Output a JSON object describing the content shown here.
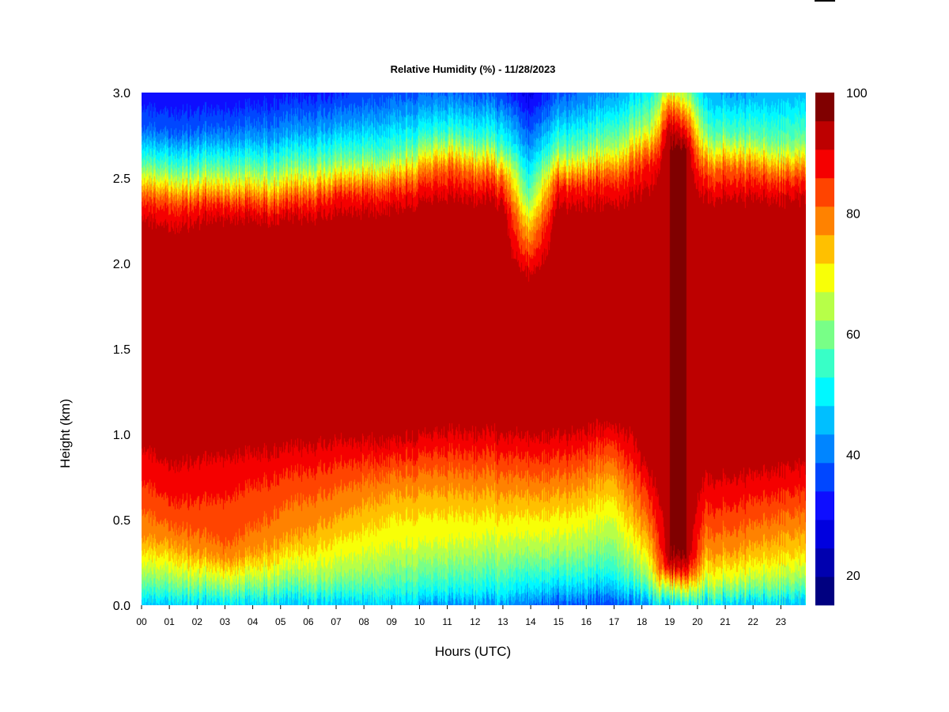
{
  "chart_data": {
    "type": "heatmap",
    "title": "Relative Humidity (%) - 11/28/2023",
    "xlabel": "Hours (UTC)",
    "ylabel": "Height (km)",
    "x_ticks": [
      "00",
      "01",
      "02",
      "03",
      "04",
      "05",
      "06",
      "07",
      "08",
      "09",
      "10",
      "11",
      "12",
      "13",
      "14",
      "15",
      "16",
      "17",
      "18",
      "19",
      "20",
      "21",
      "22",
      "23"
    ],
    "x_range": [
      0,
      23.9
    ],
    "y_ticks": [
      "0.0",
      "0.5",
      "1.0",
      "1.5",
      "2.0",
      "2.5",
      "3.0"
    ],
    "y_range": [
      0,
      3.0
    ],
    "colorbar": {
      "ticks": [
        "20",
        "40",
        "60",
        "80",
        "100"
      ],
      "range": [
        15,
        100
      ],
      "level_step": 5,
      "colors": [
        "#000080",
        "#0000AF",
        "#0000DF",
        "#0E0EFF",
        "#0047FF",
        "#0085FF",
        "#00BFFF",
        "#00F8FF",
        "#38FFC7",
        "#78FF87",
        "#B7FF48",
        "#F8FF07",
        "#FFC000",
        "#FF8200",
        "#FF4400",
        "#F50000",
        "#BD0000",
        "#800000"
      ]
    },
    "profiles_description": "Relative humidity vs height (km) at selected hours (UTC); values in %",
    "profiles": [
      {
        "hour": 0.0,
        "pts": [
          [
            0,
            45
          ],
          [
            0.05,
            52
          ],
          [
            0.15,
            62
          ],
          [
            0.25,
            70
          ],
          [
            0.4,
            80
          ],
          [
            0.6,
            86
          ],
          [
            0.8,
            92
          ],
          [
            1.0,
            97
          ],
          [
            2.2,
            100
          ],
          [
            2.4,
            88
          ],
          [
            2.6,
            60
          ],
          [
            2.8,
            40
          ],
          [
            3.0,
            32
          ]
        ]
      },
      {
        "hour": 1.0,
        "pts": [
          [
            0,
            48
          ],
          [
            0.05,
            55
          ],
          [
            0.15,
            65
          ],
          [
            0.25,
            73
          ],
          [
            0.4,
            83
          ],
          [
            0.6,
            90
          ],
          [
            0.85,
            96
          ],
          [
            2.1,
            100
          ],
          [
            2.35,
            88
          ],
          [
            2.55,
            60
          ],
          [
            2.75,
            40
          ],
          [
            3.0,
            30
          ]
        ]
      },
      {
        "hour": 3.0,
        "pts": [
          [
            0,
            50
          ],
          [
            0.05,
            56
          ],
          [
            0.12,
            66
          ],
          [
            0.2,
            74
          ],
          [
            0.3,
            84
          ],
          [
            0.5,
            88
          ],
          [
            0.8,
            93
          ],
          [
            1.0,
            99
          ],
          [
            2.2,
            100
          ],
          [
            2.35,
            90
          ],
          [
            2.55,
            62
          ],
          [
            2.75,
            42
          ],
          [
            3.0,
            30
          ]
        ]
      },
      {
        "hour": 5.0,
        "pts": [
          [
            0,
            48
          ],
          [
            0.05,
            55
          ],
          [
            0.15,
            65
          ],
          [
            0.25,
            73
          ],
          [
            0.4,
            82
          ],
          [
            0.6,
            86
          ],
          [
            0.85,
            93
          ],
          [
            1.0,
            99
          ],
          [
            2.2,
            100
          ],
          [
            2.35,
            88
          ],
          [
            2.55,
            62
          ],
          [
            2.75,
            44
          ],
          [
            3.0,
            32
          ]
        ]
      },
      {
        "hour": 7.0,
        "pts": [
          [
            0,
            47
          ],
          [
            0.05,
            54
          ],
          [
            0.15,
            64
          ],
          [
            0.3,
            72
          ],
          [
            0.5,
            80
          ],
          [
            0.7,
            86
          ],
          [
            0.9,
            93
          ],
          [
            1.05,
            99
          ],
          [
            2.2,
            100
          ],
          [
            2.4,
            90
          ],
          [
            2.6,
            62
          ],
          [
            2.8,
            45
          ],
          [
            3.0,
            34
          ]
        ]
      },
      {
        "hour": 9.0,
        "pts": [
          [
            0,
            46
          ],
          [
            0.05,
            53
          ],
          [
            0.2,
            63
          ],
          [
            0.35,
            70
          ],
          [
            0.55,
            76
          ],
          [
            0.75,
            84
          ],
          [
            0.9,
            92
          ],
          [
            1.05,
            99
          ],
          [
            2.25,
            100
          ],
          [
            2.45,
            88
          ],
          [
            2.65,
            60
          ],
          [
            2.85,
            46
          ],
          [
            3.0,
            38
          ]
        ]
      },
      {
        "hour": 11.0,
        "pts": [
          [
            0,
            44
          ],
          [
            0.05,
            52
          ],
          [
            0.2,
            62
          ],
          [
            0.35,
            70
          ],
          [
            0.55,
            76
          ],
          [
            0.75,
            84
          ],
          [
            0.95,
            93
          ],
          [
            1.1,
            99
          ],
          [
            2.3,
            100
          ],
          [
            2.55,
            86
          ],
          [
            2.75,
            58
          ],
          [
            2.9,
            46
          ],
          [
            3.0,
            40
          ]
        ]
      },
      {
        "hour": 13.0,
        "pts": [
          [
            0,
            42
          ],
          [
            0.05,
            50
          ],
          [
            0.2,
            60
          ],
          [
            0.35,
            68
          ],
          [
            0.55,
            76
          ],
          [
            0.75,
            84
          ],
          [
            0.95,
            93
          ],
          [
            1.1,
            99
          ],
          [
            2.3,
            100
          ],
          [
            2.5,
            86
          ],
          [
            2.7,
            58
          ],
          [
            2.9,
            44
          ],
          [
            3.0,
            36
          ]
        ]
      },
      {
        "hour": 13.9,
        "pts": [
          [
            0,
            40
          ],
          [
            0.06,
            48
          ],
          [
            0.2,
            58
          ],
          [
            0.35,
            68
          ],
          [
            0.55,
            76
          ],
          [
            0.75,
            85
          ],
          [
            0.95,
            94
          ],
          [
            1.1,
            99
          ],
          [
            1.85,
            100
          ],
          [
            2.0,
            92
          ],
          [
            2.2,
            78
          ],
          [
            2.4,
            60
          ],
          [
            2.7,
            42
          ],
          [
            3.0,
            28
          ]
        ]
      },
      {
        "hour": 15.0,
        "pts": [
          [
            0,
            38
          ],
          [
            0.06,
            46
          ],
          [
            0.2,
            58
          ],
          [
            0.35,
            68
          ],
          [
            0.55,
            76
          ],
          [
            0.75,
            85
          ],
          [
            0.95,
            94
          ],
          [
            1.1,
            99
          ],
          [
            2.25,
            100
          ],
          [
            2.45,
            90
          ],
          [
            2.65,
            62
          ],
          [
            2.85,
            46
          ],
          [
            3.0,
            38
          ]
        ]
      },
      {
        "hour": 17.0,
        "pts": [
          [
            0,
            36
          ],
          [
            0.06,
            44
          ],
          [
            0.2,
            56
          ],
          [
            0.35,
            64
          ],
          [
            0.55,
            72
          ],
          [
            0.75,
            80
          ],
          [
            0.95,
            90
          ],
          [
            1.1,
            98
          ],
          [
            2.25,
            100
          ],
          [
            2.5,
            88
          ],
          [
            2.7,
            64
          ],
          [
            2.9,
            50
          ],
          [
            3.0,
            44
          ]
        ]
      },
      {
        "hour": 18.3,
        "pts": [
          [
            0,
            44
          ],
          [
            0.05,
            54
          ],
          [
            0.15,
            66
          ],
          [
            0.3,
            76
          ],
          [
            0.5,
            86
          ],
          [
            0.7,
            93
          ],
          [
            0.85,
            99
          ],
          [
            2.3,
            100
          ],
          [
            2.6,
            90
          ],
          [
            2.8,
            66
          ],
          [
            3.0,
            52
          ]
        ]
      },
      {
        "hour": 19.0,
        "pts": [
          [
            0,
            48
          ],
          [
            0.05,
            60
          ],
          [
            0.12,
            74
          ],
          [
            0.18,
            88
          ],
          [
            0.22,
            97
          ],
          [
            0.3,
            100
          ],
          [
            2.75,
            100
          ],
          [
            2.9,
            86
          ],
          [
            3.0,
            70
          ]
        ]
      },
      {
        "hour": 19.6,
        "pts": [
          [
            0,
            50
          ],
          [
            0.05,
            60
          ],
          [
            0.12,
            74
          ],
          [
            0.2,
            90
          ],
          [
            0.3,
            100
          ],
          [
            2.7,
            100
          ],
          [
            2.85,
            86
          ],
          [
            3.0,
            66
          ]
        ]
      },
      {
        "hour": 20.3,
        "pts": [
          [
            0,
            48
          ],
          [
            0.05,
            58
          ],
          [
            0.15,
            70
          ],
          [
            0.3,
            80
          ],
          [
            0.5,
            88
          ],
          [
            0.7,
            94
          ],
          [
            0.9,
            99
          ],
          [
            2.3,
            100
          ],
          [
            2.55,
            86
          ],
          [
            2.75,
            62
          ],
          [
            3.0,
            46
          ]
        ]
      },
      {
        "hour": 21.3,
        "pts": [
          [
            0,
            48
          ],
          [
            0.05,
            58
          ],
          [
            0.15,
            70
          ],
          [
            0.3,
            80
          ],
          [
            0.5,
            88
          ],
          [
            0.7,
            94
          ],
          [
            0.85,
            99
          ],
          [
            2.3,
            100
          ],
          [
            2.55,
            86
          ],
          [
            2.75,
            60
          ],
          [
            3.0,
            44
          ]
        ]
      },
      {
        "hour": 23.0,
        "pts": [
          [
            0,
            46
          ],
          [
            0.05,
            55
          ],
          [
            0.15,
            66
          ],
          [
            0.3,
            76
          ],
          [
            0.5,
            84
          ],
          [
            0.7,
            92
          ],
          [
            0.9,
            98
          ],
          [
            2.3,
            100
          ],
          [
            2.5,
            88
          ],
          [
            2.7,
            62
          ],
          [
            3.0,
            46
          ]
        ]
      },
      {
        "hour": 23.9,
        "pts": [
          [
            0,
            46
          ],
          [
            0.05,
            55
          ],
          [
            0.15,
            66
          ],
          [
            0.3,
            76
          ],
          [
            0.5,
            84
          ],
          [
            0.7,
            92
          ],
          [
            0.9,
            98
          ],
          [
            2.3,
            100
          ],
          [
            2.5,
            88
          ],
          [
            2.7,
            62
          ],
          [
            3.0,
            46
          ]
        ]
      }
    ]
  }
}
